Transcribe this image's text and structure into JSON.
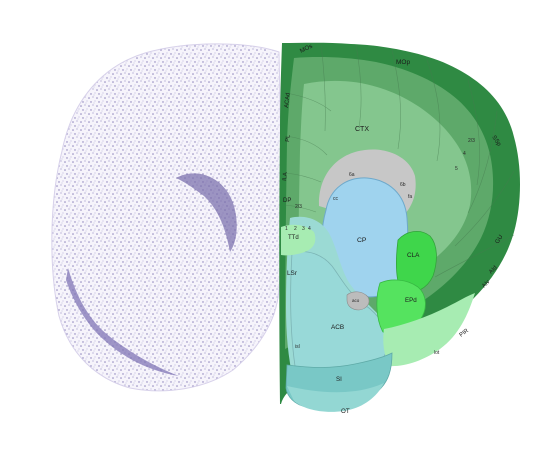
{
  "atlas": {
    "regions": {
      "mos": "MOs",
      "mop": "MOp",
      "aca": "ACAd",
      "pl": "PL",
      "ila": "ILA",
      "dp": "DP",
      "ctx": "CTX",
      "ss": "SSp",
      "gu": "GU",
      "aid": "AId",
      "aiv": "AIv",
      "pir": "PIR",
      "cp": "CP",
      "cla": "CLA",
      "epd": "EPd",
      "ttd": "TTd",
      "lsr": "LSr",
      "acb": "ACB",
      "aco": "aco",
      "si": "SI",
      "ot": "OT"
    },
    "layers": {
      "l1": "1",
      "l2": "2",
      "l3": "3",
      "l4": "4",
      "l5": "5",
      "l6a": "6a",
      "l6b": "6b",
      "l23": "2/3",
      "cc": "cc",
      "fa": "fa",
      "isl": "isl",
      "lot": "lot"
    }
  },
  "colors": {
    "ctx_outer": "#2f8a43",
    "ctx_mid": "#5ea96a",
    "ctx_inner": "#84c68e",
    "white_matter": "#c7c7c7",
    "cp": "#9fd3ee",
    "cla": "#3fd64b",
    "epd": "#55e35f",
    "striatum": "#9bdad4",
    "olfactory": "#a7ecb2",
    "nissl": "#7f76b0"
  }
}
